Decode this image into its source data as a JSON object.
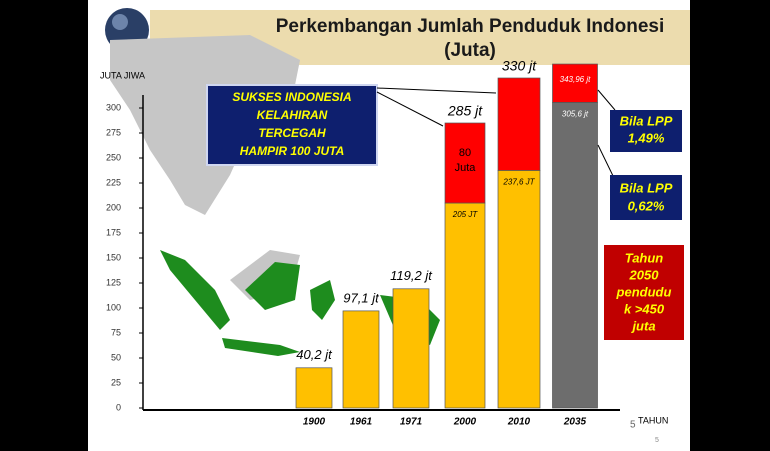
{
  "chart_data": {
    "type": "bar",
    "title": "Perkembangan Jumlah Penduduk Indonesi",
    "subtitle": "(Juta)",
    "y_axis_label": "JUTA JIWA",
    "x_axis_label": "TAHUN",
    "categories": [
      "1900",
      "1961",
      "1971",
      "2000",
      "2010",
      "2035"
    ],
    "ylim": [
      0,
      300
    ],
    "yticks": [
      0,
      25,
      50,
      75,
      100,
      125,
      150,
      175,
      200,
      225,
      250,
      275,
      300
    ],
    "series": [
      {
        "colors": [
          "#ffc000",
          "#ffc000",
          "#ffc000",
          "#ffc000",
          "#ffc000",
          "#6d6d6d"
        ],
        "values": [
          40.2,
          97.1,
          119.2,
          205,
          237.6,
          305.6
        ],
        "value_labels": [
          "40,2 jt",
          "97,1 jt",
          "119,2 jt",
          "205 JT",
          "237,6 JT",
          "305,6 jt"
        ]
      },
      {
        "color": "#ff0000",
        "values": [
          null,
          null,
          null,
          80,
          92.4,
          38.36
        ],
        "value_labels": [
          null,
          null,
          null,
          "80 Juta",
          null,
          null
        ]
      }
    ],
    "totals": [
      null,
      null,
      null,
      285,
      330,
      343.96
    ],
    "total_labels": [
      null,
      null,
      null,
      "285 jt",
      "330 jt",
      "343,96 jt"
    ],
    "annotations": {
      "success": [
        "SUKSES INDONESIA",
        "KELAHIRAN",
        "TERCEGAH",
        "HAMPIR 100 JUTA"
      ],
      "lpp_high": [
        "Bila LPP",
        "1,49%"
      ],
      "lpp_low": [
        "Bila LPP",
        "0,62%"
      ],
      "year_2050": [
        "Tahun",
        "2050",
        "pendudu",
        "k >450",
        "juta"
      ]
    },
    "page_numbers": [
      "5",
      "5"
    ]
  }
}
